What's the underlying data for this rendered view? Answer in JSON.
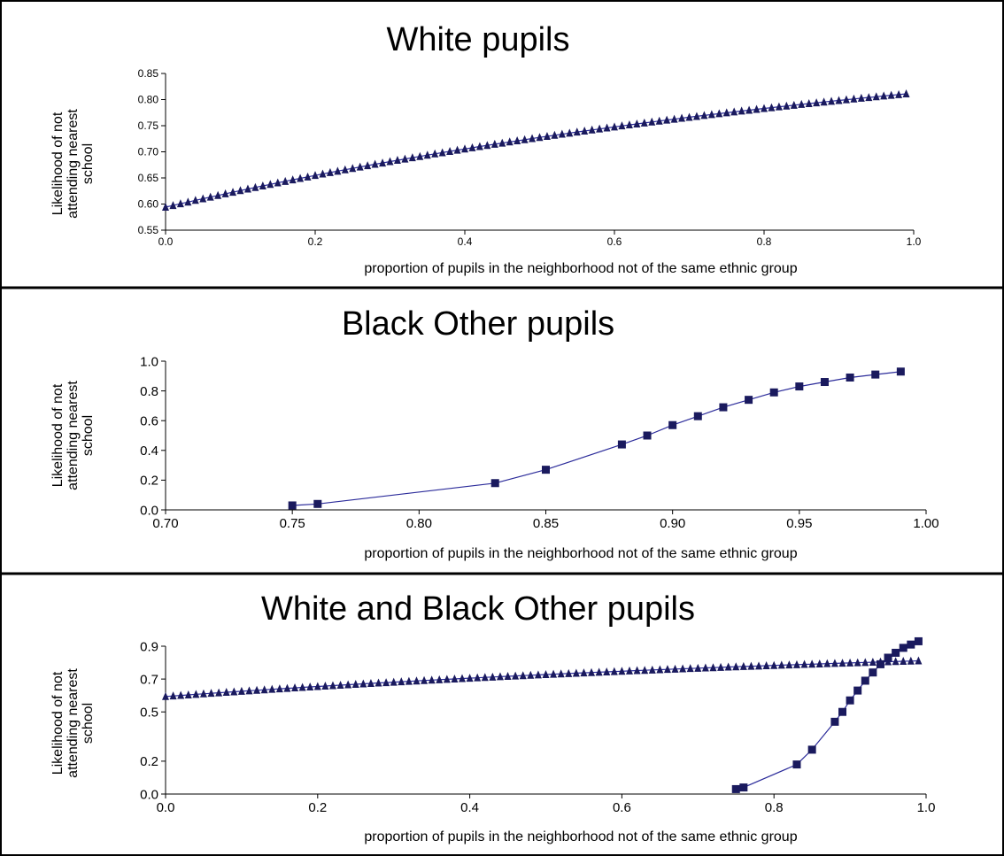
{
  "chart_data": [
    {
      "type": "line",
      "title": "White pupils",
      "ylabel_lines": [
        "Likelihood of not",
        "attending nearest",
        "school"
      ],
      "xlabel": "proportion of pupils in the neighborhood not of the same ethnic group",
      "xlim": [
        0.0,
        1.0
      ],
      "ylim": [
        0.55,
        0.85
      ],
      "xticks": [
        "0.0",
        "0.2",
        "0.4",
        "0.6",
        "0.8",
        "1.0"
      ],
      "yticks": [
        "0.55",
        "0.60",
        "0.65",
        "0.70",
        "0.75",
        "0.80",
        "0.85"
      ],
      "grid": false,
      "series": [
        {
          "marker": "triangle",
          "color": "#1a1a5e",
          "x": "0.00:0.99:0.01",
          "y_start": 0.594,
          "y_end": 0.811,
          "shape": "concave"
        }
      ]
    },
    {
      "type": "line",
      "title": "Black Other pupils",
      "ylabel_lines": [
        "Likelihood of not",
        "attending nearest",
        "school"
      ],
      "xlabel": "proportion of pupils in the neighborhood not of the same ethnic group",
      "xlim": [
        0.7,
        1.0
      ],
      "ylim": [
        0.0,
        1.0
      ],
      "xticks": [
        "0.70",
        "0.75",
        "0.80",
        "0.85",
        "0.90",
        "0.95",
        "1.00"
      ],
      "yticks": [
        "0.0",
        "0.2",
        "0.4",
        "0.6",
        "0.8",
        "1.0"
      ],
      "grid": false,
      "series": [
        {
          "marker": "square",
          "color": "#1a1a5e",
          "x": [
            0.75,
            0.76,
            0.83,
            0.85,
            0.88,
            0.89,
            0.9,
            0.91,
            0.92,
            0.93,
            0.94,
            0.95,
            0.96,
            0.97,
            0.98,
            0.99
          ],
          "y": [
            0.03,
            0.04,
            0.18,
            0.27,
            0.44,
            0.5,
            0.57,
            0.63,
            0.69,
            0.74,
            0.79,
            0.83,
            0.86,
            0.89,
            0.91,
            0.93
          ]
        }
      ]
    },
    {
      "type": "line",
      "title": "White and Black Other pupils",
      "ylabel_lines": [
        "Likelihood of not",
        "attending nearest",
        "school"
      ],
      "xlabel": "proportion of pupils in the neighborhood not of the same ethnic group",
      "xlim": [
        0.0,
        1.0
      ],
      "ylim": [
        0.0,
        0.9
      ],
      "xticks": [
        "0.0",
        "0.2",
        "0.4",
        "0.6",
        "0.8",
        "1.0"
      ],
      "yticks": [
        "0.0",
        "0.2",
        "0.5",
        "0.7",
        "0.9"
      ],
      "grid": false,
      "series": [
        {
          "marker": "triangle",
          "color": "#1a1a5e",
          "x": "0.00:0.99:0.01",
          "y_start": 0.594,
          "y_end": 0.811,
          "shape": "concave"
        },
        {
          "marker": "square",
          "color": "#1a1a5e",
          "x": [
            0.75,
            0.76,
            0.83,
            0.85,
            0.88,
            0.89,
            0.9,
            0.91,
            0.92,
            0.93,
            0.94,
            0.95,
            0.96,
            0.97,
            0.98,
            0.99
          ],
          "y": [
            0.03,
            0.04,
            0.18,
            0.27,
            0.44,
            0.5,
            0.57,
            0.63,
            0.69,
            0.74,
            0.79,
            0.83,
            0.86,
            0.89,
            0.91,
            0.93
          ]
        }
      ]
    }
  ]
}
